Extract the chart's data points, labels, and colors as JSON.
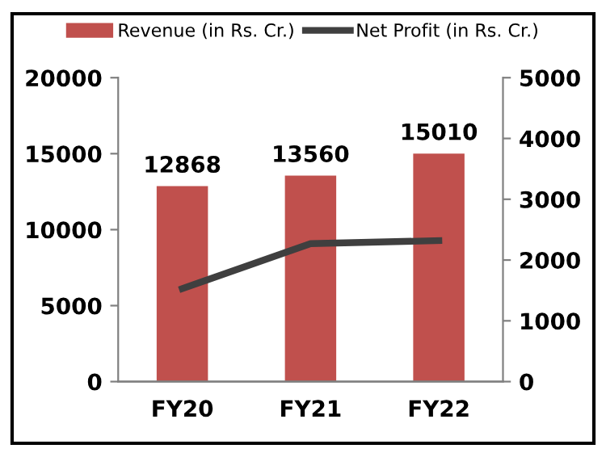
{
  "chart_data": {
    "type": "bar",
    "categories": [
      "FY20",
      "FY21",
      "FY22"
    ],
    "series": [
      {
        "name": "Revenue (in Rs. Cr.)",
        "color": "#c0504d",
        "values": [
          12868,
          13560,
          15010
        ]
      },
      {
        "name": "Net Profit (in Rs. Cr.)",
        "type": "line",
        "axis": "y2",
        "color": "#3f3f3f",
        "values": [
          1530,
          2270,
          2320
        ]
      }
    ],
    "value_labels": [
      "12868",
      "13560",
      "15010"
    ],
    "ylim": [
      0,
      20000
    ],
    "yticks": [
      0,
      5000,
      10000,
      15000,
      20000
    ],
    "y2lim": [
      0,
      5000
    ],
    "y2ticks": [
      0,
      1000,
      2000,
      3000,
      4000,
      5000
    ],
    "grid": false,
    "legend": "top"
  }
}
